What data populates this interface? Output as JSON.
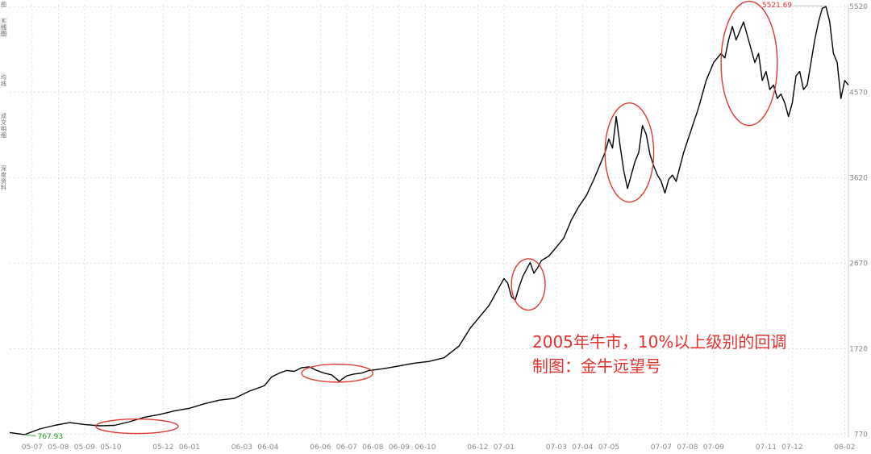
{
  "sidebar": {
    "tabs": [
      "图",
      "K线图",
      "均线",
      "成交明细",
      "深度资料"
    ]
  },
  "annotation": {
    "line1": "2005年牛市，10%以上级别的回调",
    "line2": "制图：金牛远望号"
  },
  "colors": {
    "line": "#000000",
    "circle": "#e03a30",
    "min_label": "#1a9a1a",
    "max_label": "#e0303a",
    "grid": "#d8d8d8",
    "axis_text": "#888888"
  },
  "chart_data": {
    "type": "line",
    "title": "",
    "xlabel": "",
    "ylabel": "",
    "ylim": [
      740,
      5540
    ],
    "yticks": [
      770,
      1720,
      2670,
      3620,
      4570,
      5520
    ],
    "xtick_labels": [
      "05-07",
      "05-08",
      "05-09",
      "05-10",
      "05-12",
      "06-01",
      "06-03",
      "06-04",
      "06-06",
      "06-07",
      "06-08",
      "06-09",
      "06-10",
      "06-12",
      "07-01",
      "07-03",
      "07-04",
      "07-05",
      "07-07",
      "07-08",
      "07-09",
      "07-11",
      "07-12",
      "08-02"
    ],
    "xticks": [
      6,
      13,
      20,
      27,
      41,
      48,
      62,
      69,
      83,
      90,
      97,
      104,
      111,
      125,
      132,
      146,
      153,
      160,
      174,
      181,
      188,
      202,
      209,
      223
    ],
    "x_range": [
      0,
      224
    ],
    "min_label": "767.93",
    "max_label": "5521.69",
    "series": [
      {
        "x": [
          0,
          4,
          8,
          12,
          16,
          20,
          24,
          28,
          32,
          36,
          40,
          44,
          48,
          52,
          56,
          60,
          64,
          68,
          70,
          72,
          74,
          76,
          78,
          80,
          82,
          84,
          86,
          88,
          90,
          92,
          94,
          96,
          98,
          100,
          104,
          108,
          112,
          116,
          120,
          123,
          126,
          128,
          130,
          132,
          133,
          134,
          135,
          136,
          137,
          138,
          139,
          140,
          141,
          142,
          144,
          146,
          148,
          150,
          152,
          154,
          156,
          158,
          159,
          160,
          161,
          162,
          163,
          164,
          165,
          166,
          167,
          168,
          169,
          170,
          171,
          172,
          173,
          174,
          175,
          176,
          177,
          178,
          180,
          182,
          184,
          186,
          188,
          190,
          191,
          192,
          193,
          194,
          195,
          196,
          197,
          198,
          199,
          200,
          201,
          202,
          203,
          204,
          205,
          206,
          207,
          208,
          209,
          210,
          211,
          212,
          213,
          214,
          215,
          216,
          217,
          218,
          219,
          220,
          221,
          222,
          223,
          224
        ],
        "y": [
          790,
          768,
          830,
          870,
          900,
          880,
          865,
          870,
          910,
          960,
          990,
          1030,
          1060,
          1110,
          1150,
          1170,
          1250,
          1310,
          1410,
          1450,
          1480,
          1470,
          1510,
          1520,
          1480,
          1450,
          1430,
          1360,
          1420,
          1440,
          1450,
          1480,
          1490,
          1500,
          1530,
          1560,
          1580,
          1620,
          1750,
          1950,
          2100,
          2200,
          2350,
          2500,
          2450,
          2300,
          2260,
          2400,
          2520,
          2600,
          2680,
          2560,
          2620,
          2700,
          2750,
          2850,
          2950,
          3150,
          3300,
          3420,
          3600,
          3800,
          3900,
          4050,
          3950,
          4300,
          3980,
          3700,
          3500,
          3650,
          3800,
          3900,
          4200,
          4100,
          3880,
          3750,
          3650,
          3580,
          3450,
          3600,
          3650,
          3580,
          3900,
          4150,
          4400,
          4700,
          4900,
          5000,
          4950,
          5150,
          5300,
          5150,
          5250,
          5350,
          5200,
          5050,
          4900,
          5000,
          4700,
          4800,
          4600,
          4650,
          4500,
          4550,
          4450,
          4300,
          4450,
          4750,
          4800,
          4600,
          4650,
          4900,
          5150,
          5350,
          5500,
          5521,
          5350,
          5000,
          4900,
          4500,
          4700,
          4650
        ]
      }
    ]
  }
}
